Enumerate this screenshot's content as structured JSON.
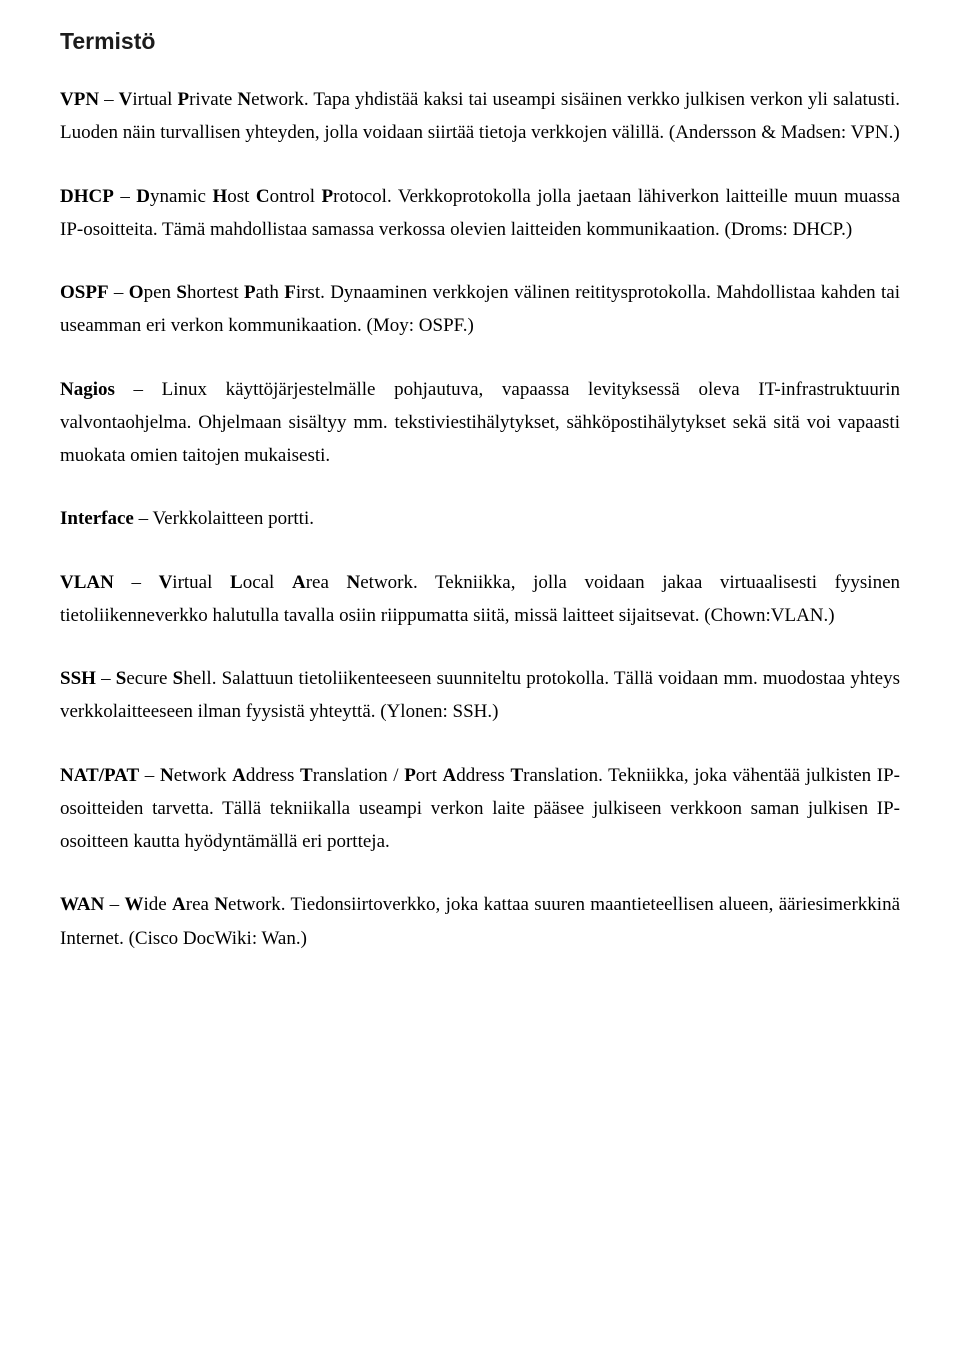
{
  "heading": "Termistö",
  "terms": {
    "vpn": {
      "prefix_bold": "VPN",
      "sep1": " – ",
      "l1": "V",
      "w1": "irtual ",
      "l2": "P",
      "w2": "rivate ",
      "l3": "N",
      "w3": "etwork. ",
      "desc": "Tapa yhdistää kaksi tai useampi sisäinen verkko julkisen verkon yli salatusti. Luoden näin turvallisen yhteyden, jolla voidaan siirtää tietoja verkkojen välillä. (Andersson & Madsen: VPN.)"
    },
    "dhcp": {
      "prefix_bold": "DHCP",
      "sep1": " – ",
      "l1": "D",
      "w1": "ynamic ",
      "l2": "H",
      "w2": "ost ",
      "l3": "C",
      "w3": "ontrol ",
      "l4": "P",
      "w4": "rotocol. ",
      "desc": "Verkkoprotokolla jolla jaetaan lähiverkon laitteille muun muassa IP-osoitteita. Tämä mahdollistaa samassa verkossa olevien laitteiden kommunikaation. (Droms: DHCP.)"
    },
    "ospf": {
      "prefix_bold": "OSPF",
      "sep1": " – ",
      "l1": "O",
      "w1": "pen ",
      "l2": "S",
      "w2": "hortest ",
      "l3": "P",
      "w3": "ath ",
      "l4": "F",
      "w4": "irst. ",
      "desc": "Dynaaminen verkkojen välinen reititysprotokolla. Mahdollistaa kahden tai useamman eri verkon kommunikaation. (Moy: OSPF.)"
    },
    "nagios": {
      "prefix_bold": "Nagios",
      "sep1": " – ",
      "desc": "Linux käyttöjärjestelmälle pohjautuva, vapaassa levityksessä oleva IT-infrastruktuurin valvontaohjelma. Ohjelmaan sisältyy mm. tekstiviestihälytykset, sähköpostihälytykset sekä sitä voi vapaasti muokata omien taitojen mukaisesti."
    },
    "interface": {
      "prefix_bold": "Interface",
      "sep1": " – ",
      "desc": "Verkkolaitteen portti."
    },
    "vlan": {
      "prefix_bold": "VLAN",
      "sep1": " – ",
      "l1": "V",
      "w1": "irtual ",
      "l2": "L",
      "w2": "ocal ",
      "l3": "A",
      "w3": "rea ",
      "l4": "N",
      "w4": "etwork. ",
      "desc": "Tekniikka, jolla voidaan jakaa virtuaalisesti fyysinen tietoliikenneverkko halutulla tavalla osiin riippumatta siitä, missä laitteet sijaitsevat. (Chown:VLAN.)"
    },
    "ssh": {
      "prefix_bold": "SSH",
      "sep1": " – ",
      "l1": "S",
      "w1": "ecure ",
      "l2": "S",
      "w2": "hell. ",
      "desc": "Salattuun tietoliikenteeseen suunniteltu protokolla. Tällä voidaan mm. muodostaa yhteys verkkolaitteeseen ilman fyysistä yhteyttä. (Ylonen: SSH.)"
    },
    "natpat": {
      "prefix_bold": "NAT/PAT",
      "sep1": " – ",
      "l1": "N",
      "w1": "etwork ",
      "l2": "A",
      "w2": "ddress ",
      "l3": "T",
      "w3": "ranslation / ",
      "l4": "P",
      "w4": "ort ",
      "l5": "A",
      "w5": "ddress ",
      "l6": "T",
      "w6": "ranslation. ",
      "desc": "Tekniikka, joka vähentää julkisten IP-osoitteiden tarvetta. Tällä tekniikalla useampi verkon laite pääsee julkiseen verkkoon saman julkisen IP-osoitteen kautta hyödyntämällä eri portteja."
    },
    "wan": {
      "prefix_bold": "WAN",
      "sep1": " – ",
      "l1": "W",
      "w1": "ide ",
      "l2": "A",
      "w2": "rea ",
      "l3": "N",
      "w3": "etwork. ",
      "desc": "Tiedonsiirtoverkko, joka kattaa suuren maantieteellisen alueen, ääriesimerkkinä Internet. (Cisco DocWiki: Wan.)"
    }
  }
}
